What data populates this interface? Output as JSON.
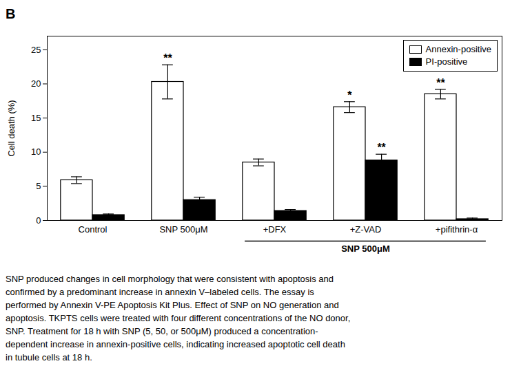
{
  "chart_data": {
    "type": "bar",
    "categories": [
      "Control",
      "SNP 500μM",
      "+DFX",
      "+Z-VAD",
      "+pifithrin-α"
    ],
    "series": [
      {
        "name": "Annexin-positive",
        "color": "#ffffff",
        "values": [
          5.9,
          20.3,
          8.5,
          16.6,
          18.5
        ],
        "errors": [
          0.5,
          2.5,
          0.5,
          0.8,
          0.7
        ],
        "significance": [
          null,
          "**",
          null,
          "*",
          "**"
        ]
      },
      {
        "name": "PI-positive",
        "color": "#000000",
        "values": [
          0.8,
          3.0,
          1.4,
          8.8,
          0.2
        ],
        "errors": [
          0.15,
          0.4,
          0.2,
          0.9,
          0.15
        ],
        "significance": [
          null,
          null,
          null,
          "**",
          null
        ]
      }
    ],
    "ylabel": "Cell death (%)",
    "ylim": [
      0,
      27
    ],
    "yticks": [
      0,
      5,
      10,
      15,
      20,
      25
    ],
    "grid": false,
    "legend": "upper right",
    "panel_label": "B",
    "annotations": [
      {
        "text": "SNP 500μM",
        "categories": [
          "+DFX",
          "+Z-VAD",
          "+pifithrin-α"
        ]
      }
    ],
    "caption": "SNP produced changes in cell morphology that were consistent with apoptosis and\nconfirmed by a predominant increase in annexin V–labeled cells. The essay is\nperformed by Annexin V-PE Apoptosis Kit Plus. Effect of SNP on NO generation and\napoptosis. TKPTS cells were treated with four different concentrations of the NO donor,\nSNP. Treatment for 18 h with SNP (5, 50, or 500μM) produced a concentration-\ndependent increase in annexin-positive cells, indicating increased apoptotic cell death\nin tubule cells at 18 h."
  }
}
